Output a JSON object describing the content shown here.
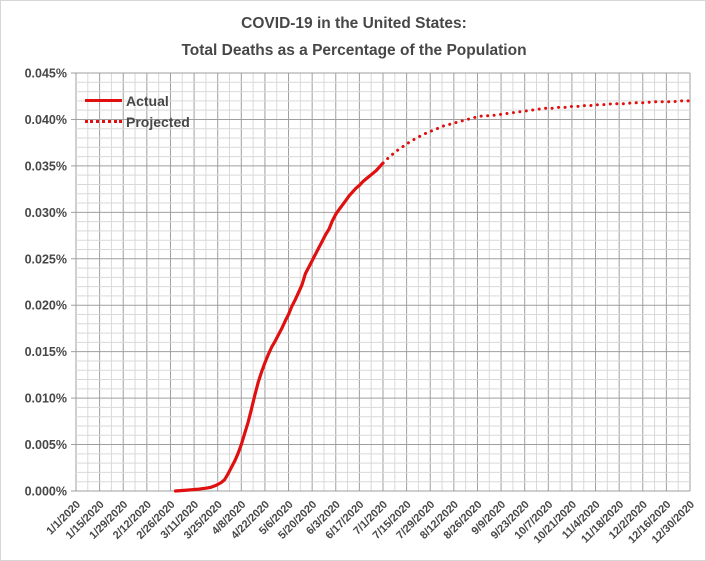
{
  "chart": {
    "title_line1": "COVID-19 in the United States:",
    "title_line2": "Total Deaths as a Percentage of the Population",
    "legend": {
      "actual": "Actual",
      "projected": "Projected"
    }
  },
  "colors": {
    "series_red": "#e01010",
    "grid_minor": "#d9d9d9",
    "grid_major": "#9f9f9f",
    "text": "#474747",
    "chart_border": "#d6d6d6"
  },
  "chart_data": {
    "type": "line",
    "title": "COVID-19 in the United States: Total Deaths as a Percentage of the Population",
    "legend_position": "inside-top-left",
    "grid": "major-and-minor",
    "x_axis": {
      "type": "date",
      "start": "1/1/2020",
      "end": "12/30/2020",
      "tick_interval_days": 14,
      "minor_grid_interval_days": 7,
      "tick_labels": [
        "1/1/2020",
        "1/15/2020",
        "1/29/2020",
        "2/12/2020",
        "2/26/2020",
        "3/11/2020",
        "3/25/2020",
        "4/8/2020",
        "4/22/2020",
        "5/6/2020",
        "5/20/2020",
        "6/3/2020",
        "6/17/2020",
        "7/1/2020",
        "7/15/2020",
        "7/29/2020",
        "8/12/2020",
        "8/26/2020",
        "9/9/2020",
        "9/23/2020",
        "10/7/2020",
        "10/21/2020",
        "11/4/2020",
        "11/18/2020",
        "12/2/2020",
        "12/16/2020",
        "12/30/2020"
      ]
    },
    "y_axis": {
      "unit": "percent of population",
      "min_percent": 0.0,
      "max_percent": 0.045,
      "major_step_percent": 0.005,
      "minor_step_percent": 0.001,
      "tick_labels": [
        "0.000%",
        "0.005%",
        "0.010%",
        "0.015%",
        "0.020%",
        "0.025%",
        "0.030%",
        "0.035%",
        "0.040%",
        "0.045%"
      ]
    },
    "series": [
      {
        "name": "Actual",
        "style": "solid",
        "color": "#e01010",
        "points_date_percent": [
          [
            "2/29/2020",
            0.0
          ],
          [
            "3/7/2020",
            0.0001
          ],
          [
            "3/14/2020",
            0.0002
          ],
          [
            "3/18/2020",
            0.0003
          ],
          [
            "3/21/2020",
            0.0004
          ],
          [
            "3/24/2020",
            0.0006
          ],
          [
            "3/27/2020",
            0.0009
          ],
          [
            "3/29/2020",
            0.0012
          ],
          [
            "3/31/2020",
            0.0018
          ],
          [
            "4/2/2020",
            0.0025
          ],
          [
            "4/4/2020",
            0.0032
          ],
          [
            "4/6/2020",
            0.004
          ],
          [
            "4/8/2020",
            0.005
          ],
          [
            "4/10/2020",
            0.0062
          ],
          [
            "4/12/2020",
            0.0074
          ],
          [
            "4/14/2020",
            0.0088
          ],
          [
            "4/16/2020",
            0.0103
          ],
          [
            "4/18/2020",
            0.0117
          ],
          [
            "4/20/2020",
            0.0128
          ],
          [
            "4/22/2020",
            0.0138
          ],
          [
            "4/24/2020",
            0.0147
          ],
          [
            "4/26/2020",
            0.0155
          ],
          [
            "4/28/2020",
            0.0161
          ],
          [
            "4/30/2020",
            0.0168
          ],
          [
            "5/2/2020",
            0.0175
          ],
          [
            "5/4/2020",
            0.0183
          ],
          [
            "5/6/2020",
            0.019
          ],
          [
            "5/8/2020",
            0.0199
          ],
          [
            "5/10/2020",
            0.0206
          ],
          [
            "5/12/2020",
            0.0214
          ],
          [
            "5/14/2020",
            0.0222
          ],
          [
            "5/16/2020",
            0.0234
          ],
          [
            "5/18/2020",
            0.0241
          ],
          [
            "5/20/2020",
            0.0248
          ],
          [
            "5/22/2020",
            0.0255
          ],
          [
            "5/24/2020",
            0.0262
          ],
          [
            "5/26/2020",
            0.0269
          ],
          [
            "5/28/2020",
            0.0276
          ],
          [
            "5/30/2020",
            0.0282
          ],
          [
            "6/1/2020",
            0.0291
          ],
          [
            "6/3/2020",
            0.0298
          ],
          [
            "6/5/2020",
            0.0303
          ],
          [
            "6/7/2020",
            0.0308
          ],
          [
            "6/9/2020",
            0.0313
          ],
          [
            "6/11/2020",
            0.0318
          ],
          [
            "6/13/2020",
            0.0322
          ],
          [
            "6/15/2020",
            0.0326
          ],
          [
            "6/17/2020",
            0.0329
          ],
          [
            "6/19/2020",
            0.0333
          ],
          [
            "6/21/2020",
            0.0336
          ],
          [
            "6/23/2020",
            0.0339
          ],
          [
            "6/25/2020",
            0.0342
          ],
          [
            "6/27/2020",
            0.0345
          ],
          [
            "6/29/2020",
            0.0349
          ],
          [
            "7/1/2020",
            0.0353
          ]
        ]
      },
      {
        "name": "Projected",
        "style": "dotted",
        "color": "#e01010",
        "points_date_percent": [
          [
            "7/1/2020",
            0.0353
          ],
          [
            "7/5/2020",
            0.036
          ],
          [
            "7/9/2020",
            0.0366
          ],
          [
            "7/13/2020",
            0.0371
          ],
          [
            "7/17/2020",
            0.0376
          ],
          [
            "7/21/2020",
            0.038
          ],
          [
            "7/25/2020",
            0.0384
          ],
          [
            "7/29/2020",
            0.0387
          ],
          [
            "8/2/2020",
            0.039
          ],
          [
            "8/6/2020",
            0.0393
          ],
          [
            "8/10/2020",
            0.0395
          ],
          [
            "8/14/2020",
            0.0397
          ],
          [
            "8/18/2020",
            0.0399
          ],
          [
            "8/22/2020",
            0.0401
          ],
          [
            "8/26/2020",
            0.0403
          ],
          [
            "8/30/2020",
            0.0404
          ],
          [
            "9/3/2020",
            0.0404
          ],
          [
            "9/7/2020",
            0.0405
          ],
          [
            "9/11/2020",
            0.0406
          ],
          [
            "9/15/2020",
            0.0407
          ],
          [
            "9/19/2020",
            0.0408
          ],
          [
            "9/23/2020",
            0.0409
          ],
          [
            "9/27/2020",
            0.041
          ],
          [
            "10/1/2020",
            0.0411
          ],
          [
            "10/5/2020",
            0.0412
          ],
          [
            "10/9/2020",
            0.0412
          ],
          [
            "10/13/2020",
            0.0413
          ],
          [
            "10/17/2020",
            0.0413
          ],
          [
            "10/21/2020",
            0.0414
          ],
          [
            "10/25/2020",
            0.0414
          ],
          [
            "10/29/2020",
            0.0415
          ],
          [
            "11/2/2020",
            0.0415
          ],
          [
            "11/6/2020",
            0.0416
          ],
          [
            "11/10/2020",
            0.0416
          ],
          [
            "11/14/2020",
            0.0417
          ],
          [
            "11/18/2020",
            0.0417
          ],
          [
            "11/22/2020",
            0.0417
          ],
          [
            "11/26/2020",
            0.0418
          ],
          [
            "11/30/2020",
            0.0418
          ],
          [
            "12/4/2020",
            0.0418
          ],
          [
            "12/8/2020",
            0.0419
          ],
          [
            "12/12/2020",
            0.0419
          ],
          [
            "12/16/2020",
            0.0419
          ],
          [
            "12/20/2020",
            0.0419
          ],
          [
            "12/24/2020",
            0.042
          ],
          [
            "12/28/2020",
            0.042
          ],
          [
            "12/30/2020",
            0.042
          ]
        ]
      }
    ]
  }
}
